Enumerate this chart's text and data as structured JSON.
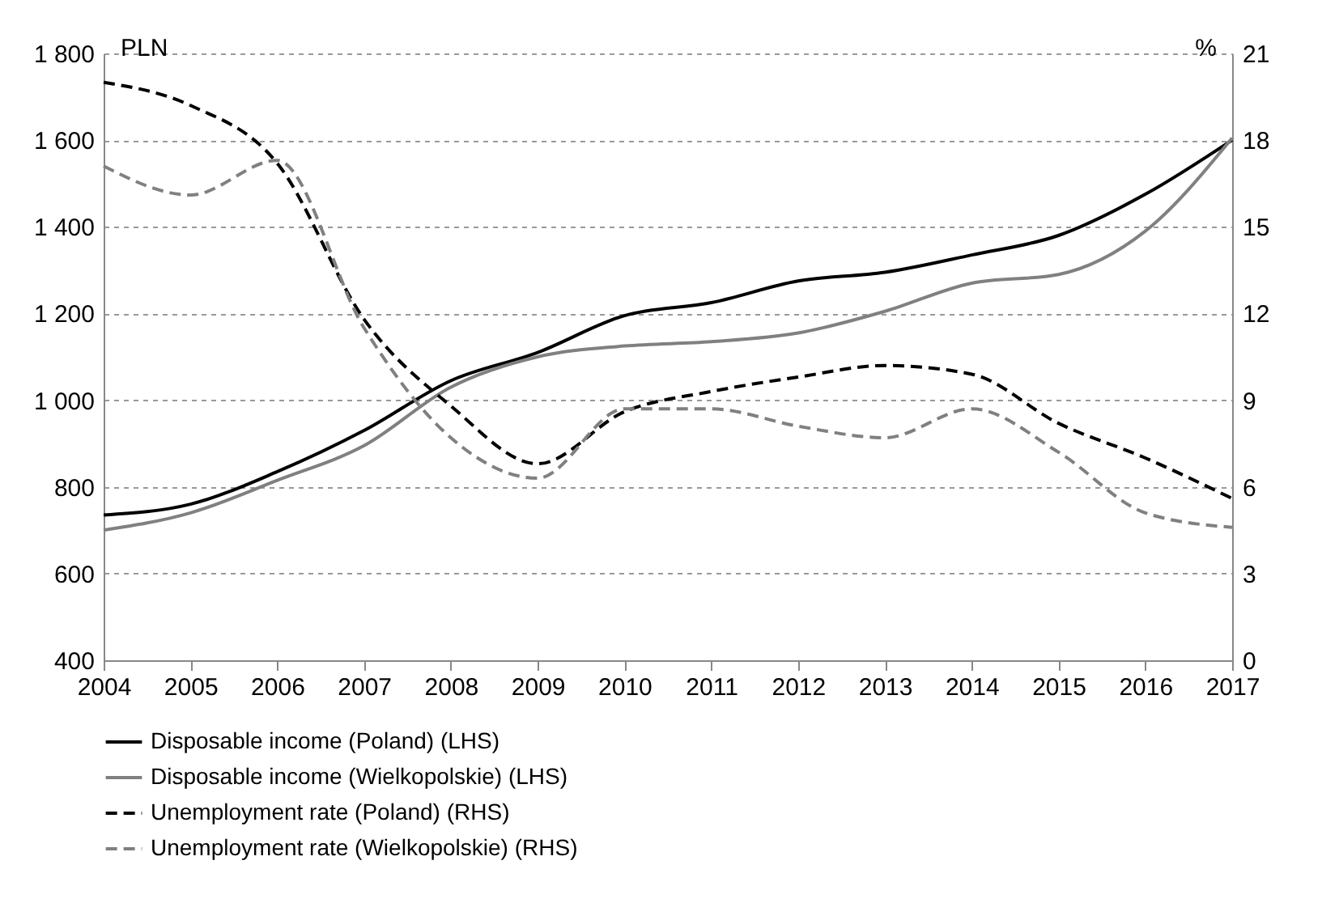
{
  "chart_data": {
    "type": "line",
    "xlabel": null,
    "ylabel": "PLN",
    "y2label": "%",
    "categories": [
      "2004",
      "2005",
      "2006",
      "2007",
      "2008",
      "2009",
      "2010",
      "2011",
      "2012",
      "2013",
      "2014",
      "2015",
      "2016",
      "2017"
    ],
    "series": [
      {
        "name": "Disposable income (Poland) (LHS)",
        "color": "#000000",
        "line_style": "solid",
        "values": [
          735,
          760,
          835,
          930,
          1045,
          1110,
          1195,
          1225,
          1275,
          1295,
          1335,
          1380,
          1475,
          1600
        ]
      },
      {
        "name": "Disposable income (Wielkopolskie) (LHS)",
        "color": "#808080",
        "line_style": "solid",
        "values": [
          700,
          740,
          815,
          895,
          1030,
          1100,
          1125,
          1135,
          1155,
          1205,
          1270,
          1290,
          1390,
          1605
        ]
      },
      {
        "name": "Unemployment rate (Poland) (RHS)",
        "color": "#000000",
        "line_style": "dashed",
        "axis": "y2",
        "values": [
          20.0,
          19.2,
          17.2,
          11.8,
          8.8,
          6.8,
          8.6,
          9.3,
          9.8,
          10.2,
          9.9,
          8.2,
          7.0,
          5.6
        ]
      },
      {
        "name": "Unemployment rate (Wielkopolskie) (RHS)",
        "color": "#808080",
        "line_style": "dashed",
        "axis": "y2",
        "values": [
          17.1,
          16.1,
          17.3,
          11.5,
          7.7,
          6.3,
          8.7,
          8.7,
          8.1,
          7.7,
          8.7,
          7.2,
          5.1,
          4.6
        ]
      }
    ],
    "ylim": [
      400,
      1800
    ],
    "yticks": [
      400,
      600,
      800,
      {
        "value": 1000,
        "label": "1 000"
      },
      {
        "value": 1200,
        "label": "1 200"
      },
      {
        "value": 1400,
        "label": "1 400"
      },
      {
        "value": 1600,
        "label": "1 600"
      },
      {
        "value": 1800,
        "label": "1 800"
      }
    ],
    "y2lim": [
      0,
      21
    ],
    "y2ticks": [
      0,
      3,
      6,
      9,
      12,
      15,
      18,
      21
    ],
    "grid": "y",
    "legend": "bottom"
  }
}
